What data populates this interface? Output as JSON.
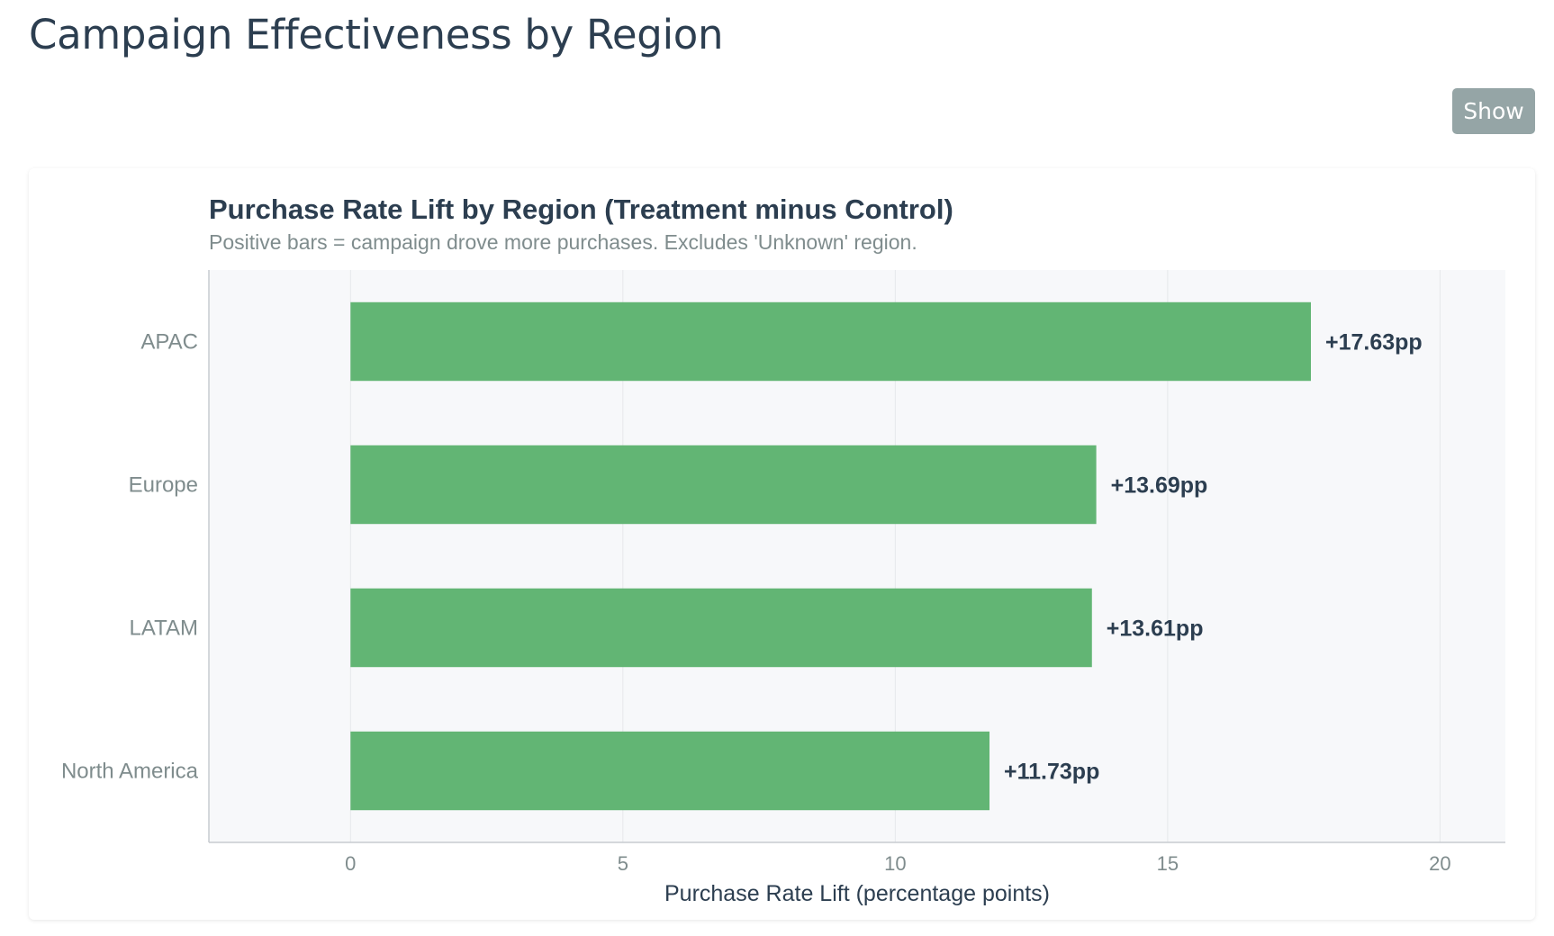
{
  "page": {
    "title": "Campaign Effectiveness by Region",
    "show_button_label": "Show"
  },
  "colors": {
    "bar": "#62b574",
    "plot_background": "#f7f8fa",
    "grid": "#e6e8eb",
    "axis": "#c7cbd0"
  },
  "chart_data": {
    "type": "bar",
    "orientation": "horizontal",
    "title": "Purchase Rate Lift by Region (Treatment minus Control)",
    "subtitle": "Positive bars = campaign drove more purchases. Excludes 'Unknown' region.",
    "xlabel": "Purchase Rate Lift (percentage points)",
    "ylabel": "",
    "categories": [
      "APAC",
      "Europe",
      "LATAM",
      "North America"
    ],
    "values": [
      17.63,
      13.69,
      13.61,
      11.73
    ],
    "data_labels": [
      "+17.63pp",
      "+13.69pp",
      "+13.61pp",
      "+11.73pp"
    ],
    "xlim": [
      -2.6,
      21.2
    ],
    "xticks": [
      0,
      5,
      10,
      15,
      20
    ],
    "grid": true,
    "legend": "none"
  }
}
